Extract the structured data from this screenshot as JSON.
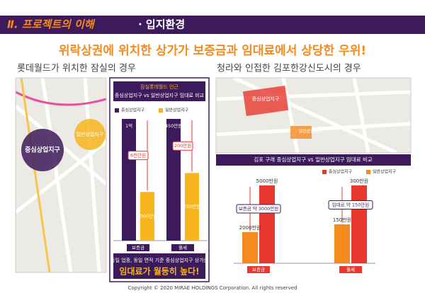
{
  "header": {
    "section": "Ⅱ. 프로젝트의 이해",
    "topic": "· 입지환경"
  },
  "headline": "위락상권에 위치한 상가가 보증금과 임대료에서 상당한 우위!",
  "left": {
    "subtitle": "롯데월드가 위치한 잠실의 경우",
    "map_labels": [
      "중심상업지구",
      "일반상업지구"
    ],
    "note": "동일 업종, 동일 면적 기준 중심상업지구 상가는",
    "conclusion": "임대료가 월등히 높다!"
  },
  "right": {
    "subtitle": "청라와 인접한 김포한강신도시의 경우",
    "map_labels": [
      "중심상업지구",
      "일반상업지구"
    ]
  },
  "chart_data": [
    {
      "type": "bar",
      "title": "잠실롯데월드 인근",
      "subtitle": "중심상업지구 vs 일반상업지구 임대료 비교",
      "categories": [
        "보증금",
        "월세"
      ],
      "series": [
        {
          "name": "중심상업지구",
          "color": "#3d1a5b",
          "values": [
            10000,
            450
          ],
          "value_labels": [
            "1억",
            "450만원"
          ]
        },
        {
          "name": "일반상업지구",
          "color": "#f7b51d",
          "values": [
            4000,
            250
          ],
          "value_labels": [
            "4000만원",
            "250만원"
          ]
        }
      ],
      "annotations": [
        "6천만원",
        "200만원"
      ]
    },
    {
      "type": "bar",
      "title": "김포 구래 중심상업지구 vs 일반상업지구 임대료 비교",
      "categories": [
        "보증금",
        "월세"
      ],
      "series": [
        {
          "name": "중심상업지구",
          "color": "#e8372c",
          "values": [
            5000,
            300
          ],
          "value_labels": [
            "5000만원",
            "300만원"
          ]
        },
        {
          "name": "일반상업지구",
          "color": "#f58a1f",
          "values": [
            2000,
            150
          ],
          "value_labels": [
            "2000만원",
            "150만원"
          ]
        }
      ],
      "annotations": [
        "보증금 약 3000만원",
        "임대료 약 150만원"
      ]
    }
  ],
  "footer": "Copyright © 2020 MIRAE HOLDINGS Corporation. All rights reserved"
}
